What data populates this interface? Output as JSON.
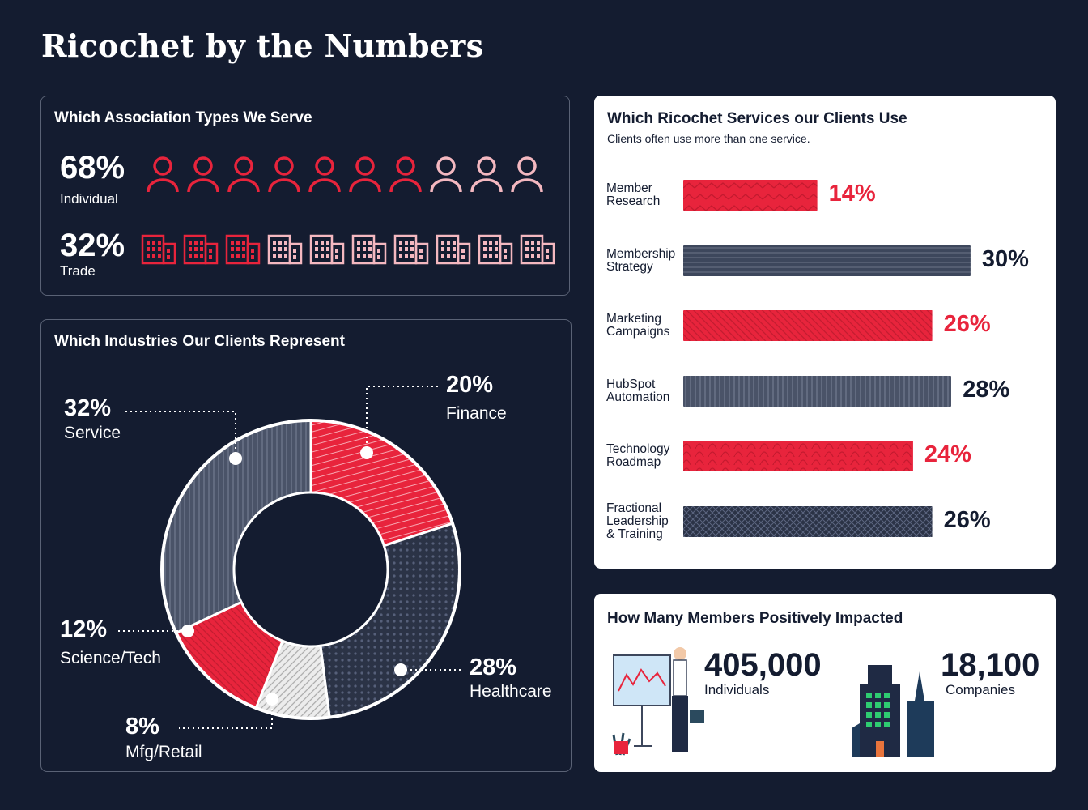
{
  "title": "Ricochet by the Numbers",
  "colors": {
    "background": "#141c30",
    "red": "#e8243c",
    "light_red": "#f4b8c0",
    "navy": "#3d475c",
    "gray": "#d3d3d3"
  },
  "association": {
    "title": "Which Association Types We Serve",
    "individual": {
      "pct": "68%",
      "label": "Individual",
      "icon": "person-icon",
      "filled": 7,
      "total": 10
    },
    "trade": {
      "pct": "32%",
      "label": "Trade",
      "icon": "building-icon",
      "filled": 3,
      "total": 10
    }
  },
  "industries": {
    "title": "Which Industries Our Clients Represent",
    "labels": [
      {
        "pct": "20%",
        "name": "Finance"
      },
      {
        "pct": "28%",
        "name": "Healthcare"
      },
      {
        "pct": "8%",
        "name": "Mfg/Retail"
      },
      {
        "pct": "12%",
        "name": "Science/Tech"
      },
      {
        "pct": "32%",
        "name": "Service"
      }
    ]
  },
  "services": {
    "title": "Which Ricochet Services our Clients Use",
    "subtitle": "Clients often use more than one service.",
    "items": [
      {
        "label": "Member\nResearch",
        "pct": "14%"
      },
      {
        "label": "Membership\nStrategy",
        "pct": "30%"
      },
      {
        "label": "Marketing\nCampaigns",
        "pct": "26%"
      },
      {
        "label": "HubSpot\nAutomation",
        "pct": "28%"
      },
      {
        "label": "Technology\nRoadmap",
        "pct": "24%"
      },
      {
        "label": "Fractional\nLeadership\n& Training",
        "pct": "26%"
      }
    ]
  },
  "members": {
    "title": "How Many Members Positively Impacted",
    "individuals": {
      "value": "405,000",
      "label": "Individuals"
    },
    "companies": {
      "value": "18,100",
      "label": "Companies"
    }
  },
  "chart_data": [
    {
      "type": "pie",
      "title": "Which Industries Our Clients Represent",
      "categories": [
        "Finance",
        "Healthcare",
        "Mfg/Retail",
        "Science/Tech",
        "Service"
      ],
      "values": [
        20,
        28,
        8,
        12,
        32
      ],
      "donut": true
    },
    {
      "type": "bar",
      "orientation": "horizontal",
      "title": "Which Ricochet Services our Clients Use",
      "categories": [
        "Member Research",
        "Membership Strategy",
        "Marketing Campaigns",
        "HubSpot Automation",
        "Technology Roadmap",
        "Fractional Leadership & Training"
      ],
      "values": [
        14,
        30,
        26,
        28,
        24,
        26
      ]
    }
  ]
}
